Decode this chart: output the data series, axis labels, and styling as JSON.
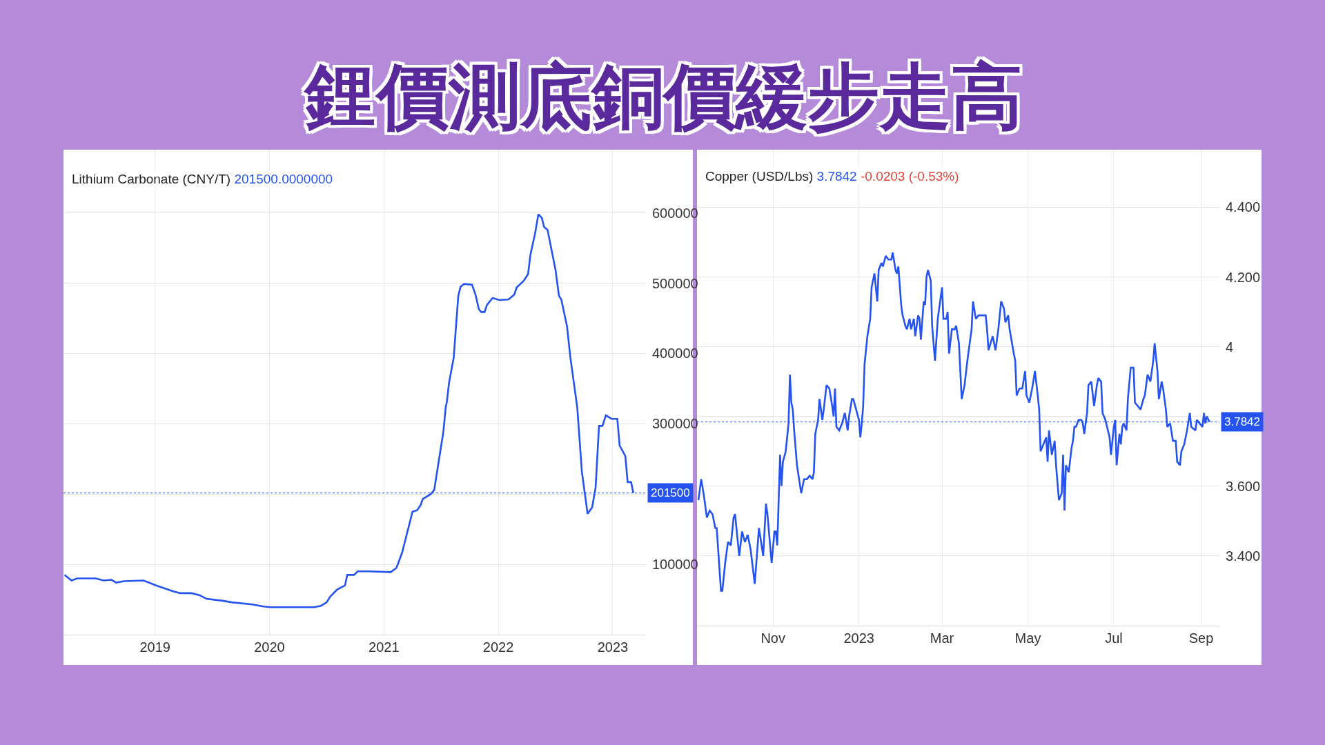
{
  "chart_data": [
    {
      "type": "other",
      "title": "鋰價測底銅價緩步走高"
    },
    {
      "type": "line",
      "title": "Lithium Carbonate (CNY/T)",
      "subtitle": "201500.0000000",
      "xlim": [
        2018.2,
        2023.29
      ],
      "xticks": [
        2019,
        2020,
        2021,
        2022,
        2023
      ],
      "ylim": [
        0,
        690000
      ],
      "yticks": [
        100000,
        {
          "value": 200000,
          "label": null
        },
        300000,
        400000,
        500000,
        600000
      ],
      "grid": true,
      "ref_lines": [
        {
          "axis": "y",
          "value": 201500,
          "label": "201500",
          "color": "#2453f0",
          "line_style": "dotted"
        }
      ],
      "series": [
        {
          "color": "#2453f0",
          "x": [
            2018.21,
            2018.27,
            2018.32,
            2018.48,
            2018.55,
            2018.62,
            2018.66,
            2018.73,
            2018.9,
            2019.01,
            2019.15,
            2019.22,
            2019.32,
            2019.39,
            2019.45,
            2019.6,
            2019.67,
            2019.85,
            2019.95,
            2020.01,
            2020.39,
            2020.45,
            2020.5,
            2020.53,
            2020.59,
            2020.66,
            2020.68,
            2020.74,
            2020.77,
            2020.87,
            2021.06,
            2021.11,
            2021.16,
            2021.25,
            2021.29,
            2021.32,
            2021.34,
            2021.41,
            2021.44,
            2021.47,
            2021.52,
            2021.54,
            2021.55,
            2021.57,
            2021.61,
            2021.65,
            2021.67,
            2021.7,
            2021.77,
            2021.8,
            2021.83,
            2021.85,
            2021.88,
            2021.9,
            2021.95,
            2022.01,
            2022.09,
            2022.14,
            2022.16,
            2022.22,
            2022.26,
            2022.28,
            2022.32,
            2022.35,
            2022.38,
            2022.4,
            2022.43,
            2022.5,
            2022.53,
            2022.55,
            2022.6,
            2022.63,
            2022.69,
            2022.73,
            2022.78,
            2022.82,
            2022.85,
            2022.88,
            2022.91,
            2022.94,
            2022.99,
            2023.04,
            2023.06,
            2023.11,
            2023.13,
            2023.16,
            2023.18
          ],
          "values": [
            85000,
            77000,
            80000,
            80000,
            77000,
            78000,
            74000,
            76000,
            77000,
            70000,
            62000,
            59000,
            59000,
            56000,
            51000,
            48000,
            46000,
            43000,
            40000,
            39000,
            39000,
            41000,
            46000,
            54000,
            64000,
            70000,
            85000,
            85000,
            90000,
            90000,
            89000,
            95000,
            117000,
            175000,
            177000,
            184000,
            193000,
            200000,
            206000,
            237000,
            289000,
            323000,
            331000,
            359000,
            394000,
            482000,
            495000,
            499000,
            498000,
            484000,
            463000,
            459000,
            459000,
            469000,
            479000,
            476000,
            477000,
            484000,
            494000,
            503000,
            513000,
            540000,
            570000,
            598000,
            593000,
            580000,
            576000,
            519000,
            482000,
            477000,
            439000,
            394000,
            323000,
            232000,
            172000,
            181000,
            209000,
            297000,
            297000,
            312000,
            307000,
            307000,
            269000,
            254000,
            217000,
            217000,
            201500
          ]
        }
      ]
    },
    {
      "type": "line",
      "title": "Copper (USD/Lbs)",
      "subtitle": "3.7842",
      "annotations": [
        "-0.0203 (-0.53%)"
      ],
      "xlim": [
        "2022-09-08",
        "2023-09-14"
      ],
      "xticks": [
        {
          "value": "2022-11-01",
          "label": "Nov"
        },
        {
          "value": "2023-01-01",
          "label": "2023"
        },
        {
          "value": "2023-03-01",
          "label": "Mar"
        },
        {
          "value": "2023-05-01",
          "label": "May"
        },
        {
          "value": "2023-07-01",
          "label": "Jul"
        },
        {
          "value": "2023-09-01",
          "label": "Sep"
        }
      ],
      "ylim": [
        3.2,
        4.565
      ],
      "yticks": [
        {
          "value": 3.4,
          "label": "3.400"
        },
        {
          "value": 3.6,
          "label": "3.600"
        },
        {
          "value": 3.8,
          "label": null
        },
        4,
        {
          "value": 4.2,
          "label": "4.200"
        },
        {
          "value": 4.4,
          "label": "4.400"
        }
      ],
      "grid": true,
      "ref_lines": [
        {
          "axis": "y",
          "value": 3.7842,
          "label": "3.7842",
          "color": "#2453f0",
          "line_style": "dotted"
        }
      ],
      "series": [
        {
          "color": "#2453f0",
          "x": [
            "2022-09-09",
            "2022-09-11",
            "2022-09-13",
            "2022-09-15",
            "2022-09-17",
            "2022-09-19",
            "2022-09-21",
            "2022-09-22",
            "2022-09-24",
            "2022-09-25",
            "2022-09-26",
            "2022-09-28",
            "2022-09-30",
            "2022-10-02",
            "2022-10-04",
            "2022-10-05",
            "2022-10-08",
            "2022-10-10",
            "2022-10-12",
            "2022-10-14",
            "2022-10-16",
            "2022-10-19",
            "2022-10-22",
            "2022-10-25",
            "2022-10-27",
            "2022-10-28",
            "2022-10-31",
            "2022-11-02",
            "2022-11-03",
            "2022-11-04",
            "2022-11-06",
            "2022-11-07",
            "2022-11-08",
            "2022-11-10",
            "2022-11-12",
            "2022-11-13",
            "2022-11-14",
            "2022-11-15",
            "2022-11-16",
            "2022-11-18",
            "2022-11-21",
            "2022-11-23",
            "2022-11-25",
            "2022-11-27",
            "2022-11-29",
            "2022-11-30",
            "2022-12-01",
            "2022-12-03",
            "2022-12-04",
            "2022-12-06",
            "2022-12-07",
            "2022-12-09",
            "2022-12-11",
            "2022-12-13",
            "2022-12-14",
            "2022-12-15",
            "2022-12-16",
            "2022-12-18",
            "2022-12-20",
            "2022-12-22",
            "2022-12-24",
            "2022-12-25",
            "2022-12-27",
            "2022-12-28",
            "2022-12-30",
            "2023-01-01",
            "2023-01-02",
            "2023-01-03",
            "2023-01-04",
            "2023-01-05",
            "2023-01-07",
            "2023-01-09",
            "2023-01-10",
            "2023-01-12",
            "2023-01-14",
            "2023-01-15",
            "2023-01-17",
            "2023-01-18",
            "2023-01-20",
            "2023-01-22",
            "2023-01-24",
            "2023-01-25",
            "2023-01-27",
            "2023-01-28",
            "2023-01-29",
            "2023-01-31",
            "2023-02-01",
            "2023-02-03",
            "2023-02-04",
            "2023-02-06",
            "2023-02-07",
            "2023-02-09",
            "2023-02-10",
            "2023-02-12",
            "2023-02-13",
            "2023-02-14",
            "2023-02-16",
            "2023-02-17",
            "2023-02-18",
            "2023-02-19",
            "2023-02-21",
            "2023-02-22",
            "2023-02-24",
            "2023-02-26",
            "2023-03-01",
            "2023-03-02",
            "2023-03-04",
            "2023-03-05",
            "2023-03-06",
            "2023-03-08",
            "2023-03-10",
            "2023-03-11",
            "2023-03-13",
            "2023-03-15",
            "2023-03-17",
            "2023-03-19",
            "2023-03-22",
            "2023-03-23",
            "2023-03-25",
            "2023-03-27",
            "2023-03-30",
            "2023-04-01",
            "2023-04-02",
            "2023-04-03",
            "2023-04-06",
            "2023-04-08",
            "2023-04-10",
            "2023-04-12",
            "2023-04-14",
            "2023-04-15",
            "2023-04-17",
            "2023-04-18",
            "2023-04-21",
            "2023-04-22",
            "2023-04-23",
            "2023-04-25",
            "2023-04-27",
            "2023-04-29",
            "2023-04-30",
            "2023-05-02",
            "2023-05-04",
            "2023-05-06",
            "2023-05-08",
            "2023-05-09",
            "2023-05-10",
            "2023-05-12",
            "2023-05-14",
            "2023-05-15",
            "2023-05-16",
            "2023-05-18",
            "2023-05-20",
            "2023-05-21",
            "2023-05-23",
            "2023-05-25",
            "2023-05-26",
            "2023-05-27",
            "2023-05-28",
            "2023-05-30",
            "2023-06-01",
            "2023-06-02",
            "2023-06-03",
            "2023-06-04",
            "2023-06-06",
            "2023-06-08",
            "2023-06-09",
            "2023-06-10",
            "2023-06-12",
            "2023-06-13",
            "2023-06-15",
            "2023-06-17",
            "2023-06-19",
            "2023-06-20",
            "2023-06-22",
            "2023-06-23",
            "2023-06-25",
            "2023-06-28",
            "2023-06-29",
            "2023-07-01",
            "2023-07-02",
            "2023-07-03",
            "2023-07-05",
            "2023-07-06",
            "2023-07-07",
            "2023-07-08",
            "2023-07-10",
            "2023-07-11",
            "2023-07-13",
            "2023-07-15",
            "2023-07-16",
            "2023-07-18",
            "2023-07-20",
            "2023-07-22",
            "2023-07-23",
            "2023-07-25",
            "2023-07-27",
            "2023-07-29",
            "2023-07-30",
            "2023-08-01",
            "2023-08-02",
            "2023-08-04",
            "2023-08-05",
            "2023-08-07",
            "2023-08-08",
            "2023-08-10",
            "2023-08-12",
            "2023-08-14",
            "2023-08-15",
            "2023-08-17",
            "2023-08-18",
            "2023-08-20",
            "2023-08-22",
            "2023-08-24",
            "2023-08-25",
            "2023-08-28",
            "2023-08-29",
            "2023-08-31",
            "2023-09-02",
            "2023-09-03",
            "2023-09-04",
            "2023-09-05",
            "2023-09-07"
          ],
          "values": [
            3.56,
            3.62,
            3.57,
            3.51,
            3.53,
            3.52,
            3.48,
            3.48,
            3.36,
            3.3,
            3.3,
            3.38,
            3.44,
            3.43,
            3.51,
            3.52,
            3.4,
            3.47,
            3.44,
            3.46,
            3.42,
            3.32,
            3.48,
            3.4,
            3.55,
            3.52,
            3.38,
            3.47,
            3.47,
            3.43,
            3.69,
            3.6,
            3.67,
            3.7,
            3.78,
            3.92,
            3.84,
            3.82,
            3.76,
            3.66,
            3.58,
            3.62,
            3.62,
            3.63,
            3.62,
            3.64,
            3.75,
            3.79,
            3.85,
            3.79,
            3.82,
            3.89,
            3.88,
            3.83,
            3.8,
            3.88,
            3.77,
            3.76,
            3.78,
            3.81,
            3.76,
            3.8,
            3.85,
            3.85,
            3.82,
            3.79,
            3.74,
            3.78,
            3.83,
            3.95,
            4.03,
            4.08,
            4.17,
            4.21,
            4.13,
            4.22,
            4.24,
            4.23,
            4.26,
            4.25,
            4.25,
            4.27,
            4.22,
            4.21,
            4.23,
            4.12,
            4.09,
            4.06,
            4.05,
            4.08,
            4.05,
            4.08,
            4.03,
            4.09,
            4.08,
            4.02,
            4.13,
            4.12,
            4.2,
            4.22,
            4.19,
            4.06,
            3.96,
            4.08,
            4.17,
            4.08,
            4.08,
            4.1,
            3.98,
            4.05,
            4.05,
            4.06,
            4.01,
            3.85,
            3.89,
            3.96,
            4.05,
            4.13,
            4.08,
            4.09,
            4.09,
            4.09,
            4.05,
            3.99,
            4.03,
            3.99,
            4.05,
            4.13,
            4.11,
            4.07,
            4.09,
            4.05,
            3.98,
            3.96,
            3.86,
            3.88,
            3.88,
            3.93,
            3.86,
            3.84,
            3.88,
            3.93,
            3.86,
            3.82,
            3.7,
            3.72,
            3.74,
            3.67,
            3.76,
            3.69,
            3.73,
            3.66,
            3.56,
            3.58,
            3.69,
            3.53,
            3.66,
            3.64,
            3.71,
            3.73,
            3.77,
            3.77,
            3.79,
            3.79,
            3.78,
            3.75,
            3.81,
            3.89,
            3.9,
            3.83,
            3.89,
            3.91,
            3.9,
            3.81,
            3.79,
            3.74,
            3.69,
            3.77,
            3.79,
            3.66,
            3.75,
            3.72,
            3.77,
            3.78,
            3.76,
            3.85,
            3.94,
            3.94,
            3.84,
            3.83,
            3.82,
            3.85,
            3.86,
            3.92,
            3.9,
            3.96,
            4.01,
            3.93,
            3.85,
            3.9,
            3.88,
            3.82,
            3.77,
            3.78,
            3.73,
            3.73,
            3.67,
            3.66,
            3.7,
            3.72,
            3.76,
            3.81,
            3.77,
            3.76,
            3.79,
            3.78,
            3.77,
            3.81,
            3.78,
            3.8,
            3.7842
          ]
        }
      ]
    }
  ]
}
